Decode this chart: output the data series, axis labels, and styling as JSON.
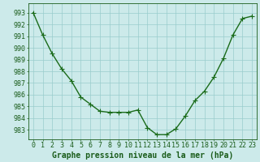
{
  "x": [
    0,
    1,
    2,
    3,
    4,
    5,
    6,
    7,
    8,
    9,
    10,
    11,
    12,
    13,
    14,
    15,
    16,
    17,
    18,
    19,
    20,
    21,
    22,
    23
  ],
  "y": [
    993.0,
    991.1,
    989.5,
    988.2,
    987.2,
    985.8,
    985.2,
    984.6,
    984.5,
    984.5,
    984.5,
    984.7,
    983.2,
    982.6,
    982.6,
    983.1,
    984.2,
    985.5,
    986.3,
    987.5,
    989.1,
    991.1,
    992.5,
    992.7
  ],
  "line_color": "#1a6b1a",
  "marker": "+",
  "marker_size": 4,
  "bg_color": "#cceaea",
  "grid_color": "#99cccc",
  "ylabel_values": [
    983,
    984,
    985,
    986,
    987,
    988,
    989,
    990,
    991,
    992,
    993
  ],
  "ylim": [
    982.2,
    993.8
  ],
  "xlim": [
    -0.5,
    23.5
  ],
  "xlabel": "Graphe pression niveau de la mer (hPa)",
  "xlabel_fontsize": 7,
  "tick_fontsize": 6,
  "title_color": "#1a5c1a",
  "line_width": 1.0
}
